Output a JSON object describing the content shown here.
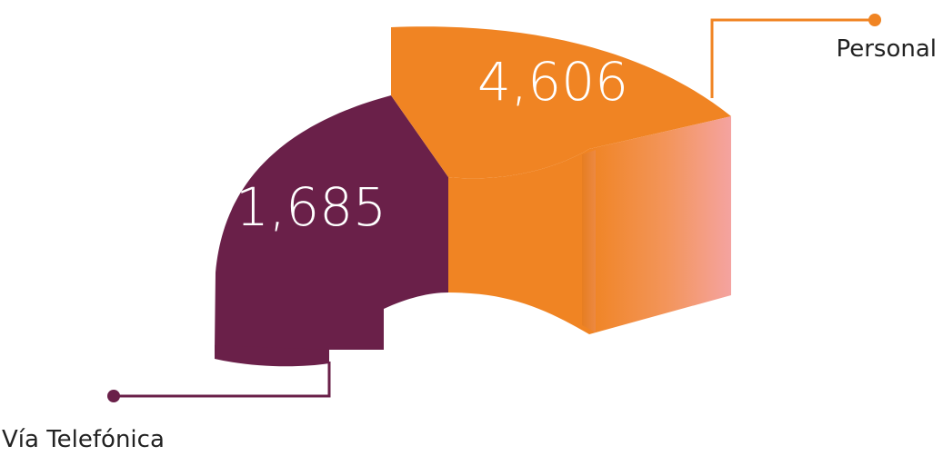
{
  "chart_data": {
    "type": "pie",
    "categories": [
      "Vía Telefónica",
      "Personal"
    ],
    "values": [
      1685,
      4606
    ],
    "value_labels": [
      "1,685",
      "4,606"
    ],
    "colors": {
      "Vía Telefónica": "#6a2049",
      "Personal": "#f08423"
    },
    "style": "3d-ring-segment",
    "legend": "callout lines"
  }
}
